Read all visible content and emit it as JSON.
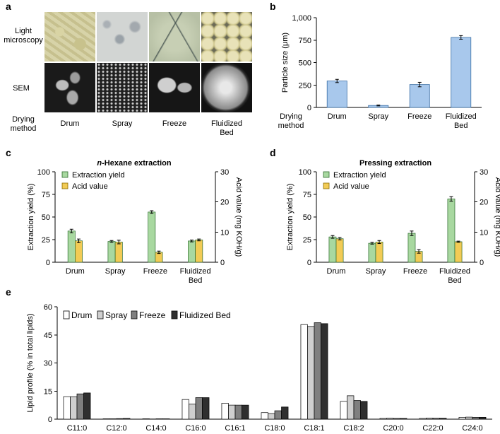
{
  "panel_labels": [
    "a",
    "b",
    "c",
    "d",
    "e"
  ],
  "panel_a": {
    "row_labels": [
      "Light\nmicroscopy",
      "SEM",
      "Drying\nmethod"
    ],
    "columns": [
      "Drum",
      "Spray",
      "Freeze",
      "Fluidized\nBed"
    ]
  },
  "chart_data": [
    {
      "id": "b",
      "type": "bar",
      "categories": [
        "Drum",
        "Spray",
        "Freeze",
        "Fluidized\nBed"
      ],
      "category_axis_caption": "Drying\nmethod",
      "values": [
        295,
        22,
        255,
        780
      ],
      "errors": [
        18,
        5,
        25,
        20
      ],
      "ylabel": "Particle size (μm)",
      "ylim": [
        0,
        1000
      ],
      "yticks": [
        0,
        250,
        500,
        750,
        1000
      ],
      "ytick_labels": [
        "0",
        "250",
        "500",
        "750",
        "1,000"
      ],
      "bar_color": "#a8c8ec"
    },
    {
      "id": "c",
      "type": "bar",
      "title_prefix": "n",
      "title": "-Hexane extraction",
      "categories": [
        "Drum",
        "Spray",
        "Freeze",
        "Fluidized\nBed"
      ],
      "legend": [
        "Extraction yield",
        "Acid value"
      ],
      "legend_position": "top-left",
      "ylabel": "Extraction yield (%)",
      "y2label": "Acid value (mg KOH/g)",
      "ylim": [
        0,
        100
      ],
      "y2lim": [
        0,
        30
      ],
      "yticks": [
        0,
        25,
        50,
        75,
        100
      ],
      "y2ticks": [
        0,
        10,
        20,
        30
      ],
      "series": [
        {
          "name": "Extraction yield",
          "axis": "left",
          "values": [
            34.5,
            23,
            55.5,
            23.5
          ],
          "errors": [
            2,
            1,
            1.5,
            1
          ],
          "color": "#a8d8a0"
        },
        {
          "name": "Acid value",
          "axis": "right",
          "values": [
            7.1,
            6.7,
            3.3,
            7.4
          ],
          "errors": [
            0.6,
            0.6,
            0.4,
            0.3
          ],
          "color": "#f2cb55"
        }
      ]
    },
    {
      "id": "d",
      "type": "bar",
      "title": "Pressing extraction",
      "categories": [
        "Drum",
        "Spray",
        "Freeze",
        "Fluidized\nBed"
      ],
      "legend": [
        "Extraction yield",
        "Acid value"
      ],
      "legend_position": "top-left",
      "ylabel": "Extraction yield (%)",
      "y2label": "Acid value (mg KOH/g)",
      "ylim": [
        0,
        100
      ],
      "y2lim": [
        0,
        30
      ],
      "yticks": [
        0,
        25,
        50,
        75,
        100
      ],
      "y2ticks": [
        0,
        10,
        20,
        30
      ],
      "series": [
        {
          "name": "Extraction yield",
          "axis": "left",
          "values": [
            28,
            21,
            32,
            70
          ],
          "errors": [
            1.5,
            1,
            2.5,
            2.5
          ],
          "color": "#a8d8a0"
        },
        {
          "name": "Acid value",
          "axis": "right",
          "values": [
            7.8,
            6.7,
            3.6,
            6.8
          ],
          "errors": [
            0.4,
            0.5,
            0.6,
            0.2
          ],
          "color": "#f2cb55"
        }
      ]
    },
    {
      "id": "e",
      "type": "bar",
      "categories": [
        "C11:0",
        "C12:0",
        "C14:0",
        "C16:0",
        "C16:1",
        "C18:0",
        "C18:1",
        "C18:2",
        "C20:0",
        "C22:0",
        "C24:0"
      ],
      "legend": [
        "Drum",
        "Spray",
        "Freeze",
        "Fluidized Bed"
      ],
      "legend_position": "top-left",
      "ylabel": "Lipid profile (% in total lipids)",
      "ylim": [
        0,
        60
      ],
      "yticks": [
        0,
        15,
        30,
        45,
        60
      ],
      "series": [
        {
          "name": "Drum",
          "values": [
            12,
            0.2,
            0.2,
            10.5,
            8.5,
            3.5,
            50.5,
            9.5,
            0.4,
            0.4,
            1
          ],
          "color": "#ffffff"
        },
        {
          "name": "Spray",
          "values": [
            12,
            0.2,
            0.1,
            8,
            7.5,
            3,
            49.5,
            12.5,
            0.5,
            0.6,
            1.1
          ],
          "color": "#cfcfcf"
        },
        {
          "name": "Freeze",
          "values": [
            13.5,
            0.3,
            0.2,
            11.5,
            7.5,
            4.5,
            51.5,
            10,
            0.4,
            0.5,
            1
          ],
          "color": "#7f7f7f"
        },
        {
          "name": "Fluidized Bed",
          "values": [
            14,
            0.4,
            0.2,
            11.5,
            7.5,
            6.5,
            51,
            9.5,
            0.4,
            0.5,
            1
          ],
          "color": "#2f2f2f"
        }
      ]
    }
  ]
}
